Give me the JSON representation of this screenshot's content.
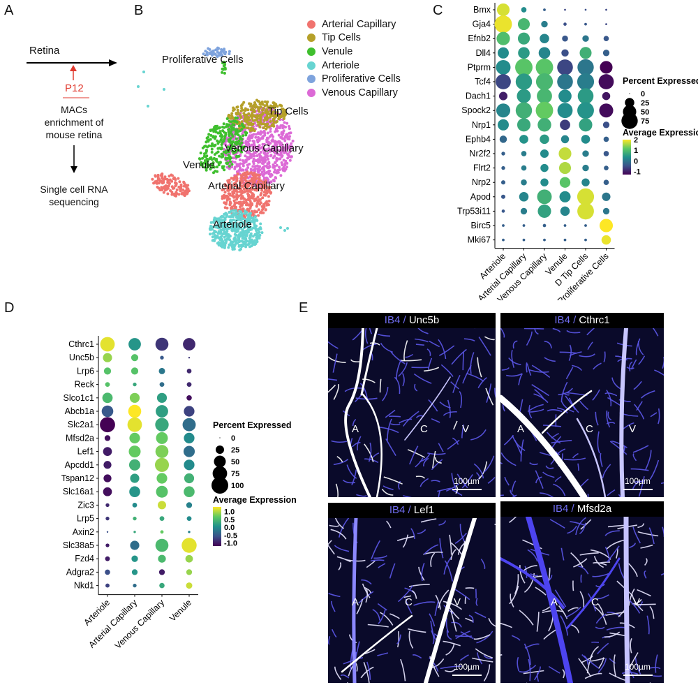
{
  "panel_letters": {
    "a": "A",
    "b": "B",
    "c": "C",
    "d": "D",
    "e": "E"
  },
  "panel_a": {
    "retina": "Retina",
    "age": "P12",
    "step1": [
      "MACs",
      "enrichment of",
      "mouse retina"
    ],
    "step2": [
      "Single cell RNA",
      "sequencing"
    ]
  },
  "panel_b": {
    "legend": [
      {
        "label": "Arterial Capillary",
        "color": "#f0736e"
      },
      {
        "label": "Tip Cells",
        "color": "#b5a029"
      },
      {
        "label": "Venule",
        "color": "#3fbf2e"
      },
      {
        "label": "Arteriole",
        "color": "#67d4d1"
      },
      {
        "label": "Proliferative Cells",
        "color": "#7ea3dd"
      },
      {
        "label": "Venous Capillary",
        "color": "#dc6ad6"
      }
    ],
    "cluster_labels": {
      "proliferative": "Proliferative Cells",
      "tip": "Tip Cells",
      "venous_cap": "Venous Capillary",
      "venule": "Venule",
      "arterial_cap": "Arterial Capillary",
      "arteriole": "Arteriole"
    }
  },
  "colorscale": [
    "#440154",
    "#3b528b",
    "#21908c",
    "#5dc963",
    "#fde725"
  ],
  "panel_c": {
    "genes": [
      "Bmx",
      "Gja4",
      "Efnb2",
      "Dll4",
      "Ptprm",
      "Tcf4",
      "Dach1",
      "Spock2",
      "Nrp1",
      "Ephb4",
      "Nr2f2",
      "Flrt2",
      "Nrp2",
      "Apod",
      "Trp53i11",
      "Birc5",
      "Mki67"
    ],
    "groups": [
      "Arteriole",
      "Arterial Capillary",
      "Venous Capillary",
      "Venule",
      "D Tip Cells",
      "Proliferative Cells"
    ],
    "pct": [
      [
        45,
        8,
        2,
        1,
        1,
        1
      ],
      [
        85,
        40,
        12,
        3,
        2,
        1
      ],
      [
        50,
        40,
        25,
        10,
        12,
        8
      ],
      [
        35,
        38,
        38,
        15,
        40,
        12
      ],
      [
        60,
        85,
        85,
        70,
        75,
        45
      ],
      [
        65,
        75,
        80,
        70,
        80,
        65
      ],
      [
        20,
        55,
        65,
        48,
        70,
        18
      ],
      [
        55,
        75,
        85,
        65,
        78,
        55
      ],
      [
        35,
        50,
        52,
        30,
        50,
        12
      ],
      [
        15,
        22,
        25,
        18,
        22,
        8
      ],
      [
        4,
        8,
        20,
        45,
        12,
        8
      ],
      [
        4,
        8,
        18,
        40,
        12,
        6
      ],
      [
        5,
        10,
        18,
        32,
        18,
        8
      ],
      [
        5,
        25,
        60,
        35,
        80,
        20
      ],
      [
        3,
        12,
        50,
        25,
        78,
        12
      ],
      [
        2,
        2,
        3,
        2,
        2,
        50
      ],
      [
        2,
        2,
        2,
        2,
        2,
        25
      ]
    ],
    "avg": [
      [
        1.8,
        0.3,
        -0.3,
        -0.6,
        -0.5,
        -0.6
      ],
      [
        1.9,
        0.9,
        0.1,
        -0.5,
        -0.4,
        -0.6
      ],
      [
        1.0,
        0.7,
        0.2,
        -0.4,
        0.0,
        -0.4
      ],
      [
        0.3,
        0.5,
        0.2,
        -0.5,
        0.8,
        -0.3
      ],
      [
        0.3,
        1.1,
        1.1,
        -0.6,
        0.0,
        -1.3
      ],
      [
        -0.6,
        0.5,
        0.9,
        0.0,
        0.1,
        -1.2
      ],
      [
        -1.0,
        0.5,
        0.9,
        0.3,
        0.5,
        -1.1
      ],
      [
        0.2,
        0.8,
        1.2,
        0.3,
        0.4,
        -1.2
      ],
      [
        0.3,
        0.7,
        0.8,
        -0.7,
        0.6,
        -0.5
      ],
      [
        -0.2,
        0.4,
        0.5,
        0.2,
        0.3,
        -0.3
      ],
      [
        -0.3,
        0.1,
        0.3,
        1.7,
        0.1,
        -0.4
      ],
      [
        -0.3,
        0.1,
        0.3,
        1.6,
        0.1,
        -0.3
      ],
      [
        -0.3,
        0.1,
        0.3,
        1.1,
        0.2,
        -0.3
      ],
      [
        -0.4,
        0.2,
        0.8,
        0.3,
        1.8,
        0.0
      ],
      [
        -0.4,
        0.1,
        0.6,
        0.2,
        1.8,
        0.0
      ],
      [
        -0.3,
        -0.3,
        -0.3,
        -0.3,
        -0.3,
        2.0
      ],
      [
        -0.3,
        -0.3,
        -0.3,
        -0.3,
        -0.3,
        1.9
      ]
    ],
    "legend": {
      "pct_title": "Percent Expressed",
      "pct_levels": [
        0,
        25,
        50,
        75
      ],
      "avg_title": "Average Expression",
      "avg_ticks": [
        "2",
        "1",
        "0",
        "-1"
      ],
      "avg_range": [
        -1.3,
        2.0
      ]
    }
  },
  "panel_d": {
    "genes": [
      "Cthrc1",
      "Unc5b",
      "Lrp6",
      "Reck",
      "Slco1c1",
      "Abcb1a",
      "Slc2a1",
      "Mfsd2a",
      "Lef1",
      "Apcdd1",
      "Tspan12",
      "Slc16a1",
      "Zic3",
      "Lrp5",
      "Axin2",
      "Slc38a5",
      "Fzd4",
      "Adgra2",
      "Nkd1"
    ],
    "groups": [
      "Arteriole",
      "Arterial Capillary",
      "Venous Capillary",
      "Venule"
    ],
    "pct": [
      [
        75,
        55,
        60,
        55
      ],
      [
        30,
        18,
        5,
        1
      ],
      [
        18,
        18,
        14,
        8
      ],
      [
        8,
        5,
        8,
        8
      ],
      [
        38,
        35,
        35,
        10
      ],
      [
        48,
        60,
        55,
        40
      ],
      [
        82,
        75,
        65,
        62
      ],
      [
        12,
        40,
        50,
        40
      ],
      [
        28,
        50,
        60,
        45
      ],
      [
        22,
        45,
        70,
        40
      ],
      [
        22,
        30,
        40,
        35
      ],
      [
        28,
        42,
        50,
        42
      ],
      [
        5,
        8,
        25,
        12
      ],
      [
        5,
        5,
        8,
        8
      ],
      [
        1,
        2,
        4,
        2
      ],
      [
        5,
        30,
        60,
        80
      ],
      [
        8,
        15,
        22,
        20
      ],
      [
        10,
        12,
        12,
        12
      ],
      [
        6,
        5,
        10,
        14
      ]
    ],
    "avg": [
      [
        1.2,
        0.1,
        -0.8,
        -0.9
      ],
      [
        0.9,
        0.6,
        -0.5,
        -0.8
      ],
      [
        0.6,
        0.6,
        -0.2,
        -0.9
      ],
      [
        0.6,
        0.3,
        -0.3,
        -0.9
      ],
      [
        0.5,
        0.8,
        0.2,
        -1.1
      ],
      [
        -0.5,
        1.3,
        0.2,
        -0.7
      ],
      [
        -1.2,
        1.2,
        0.3,
        -0.3
      ],
      [
        -1.1,
        0.7,
        0.7,
        0.0
      ],
      [
        -1.0,
        0.7,
        0.8,
        -0.3
      ],
      [
        -1.0,
        0.4,
        0.9,
        0.0
      ],
      [
        -1.1,
        0.2,
        0.7,
        0.4
      ],
      [
        -1.1,
        0.1,
        0.6,
        0.5
      ],
      [
        -0.9,
        0.0,
        1.1,
        -0.1
      ],
      [
        -0.8,
        0.4,
        0.3,
        0.0
      ],
      [
        -0.6,
        0.3,
        0.7,
        -0.1
      ],
      [
        -1.0,
        -0.3,
        0.5,
        1.2
      ],
      [
        -1.0,
        0.1,
        0.5,
        0.9
      ],
      [
        -0.6,
        0.1,
        -1.0,
        0.9
      ],
      [
        -0.7,
        -0.3,
        0.3,
        1.1
      ]
    ],
    "legend": {
      "pct_title": "Percent Expressed",
      "pct_levels": [
        0,
        25,
        50,
        75,
        100
      ],
      "avg_title": "Average Expression",
      "avg_ticks": [
        "1.0",
        "0.5",
        "0.0",
        "-0.5",
        "-1.0"
      ],
      "avg_range": [
        -1.2,
        1.3
      ]
    }
  },
  "panel_e": {
    "images": [
      {
        "stain": "IB4",
        "sep": " / ",
        "target": "Unc5b",
        "labels": [
          "A",
          "C",
          "V"
        ],
        "scale": "100µm"
      },
      {
        "stain": "IB4",
        "sep": " / ",
        "target": "Cthrc1",
        "labels": [
          "A",
          "C",
          "V"
        ],
        "scale": "100µm"
      },
      {
        "stain": "IB4",
        "sep": " / ",
        "target": "Lef1",
        "labels": [
          "A",
          "C",
          "V"
        ],
        "scale": "100µm"
      },
      {
        "stain": "IB4",
        "sep": " / ",
        "target": "Mfsd2a",
        "labels": [
          "A",
          "C",
          "V"
        ],
        "scale": "100µm"
      }
    ]
  }
}
